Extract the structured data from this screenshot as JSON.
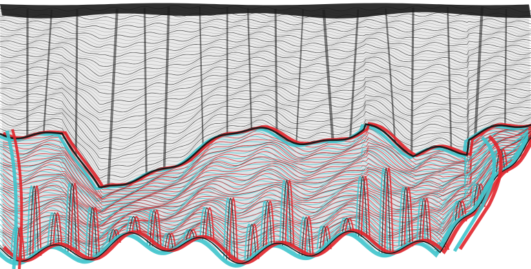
{
  "figure": {
    "kind": "anaglyph-wireframe-surface",
    "background": "#ffffff",
    "colors": {
      "red_channel": "#e0252b",
      "cyan_channel": "#3fc4cc",
      "mesh_dark": "#1a1a1a",
      "mesh_light": "#8a8a8a",
      "mesh_fill_upper": "#e9e9e9",
      "mesh_fill_lower": "#d6dde0"
    },
    "stereo": "red-cyan"
  }
}
